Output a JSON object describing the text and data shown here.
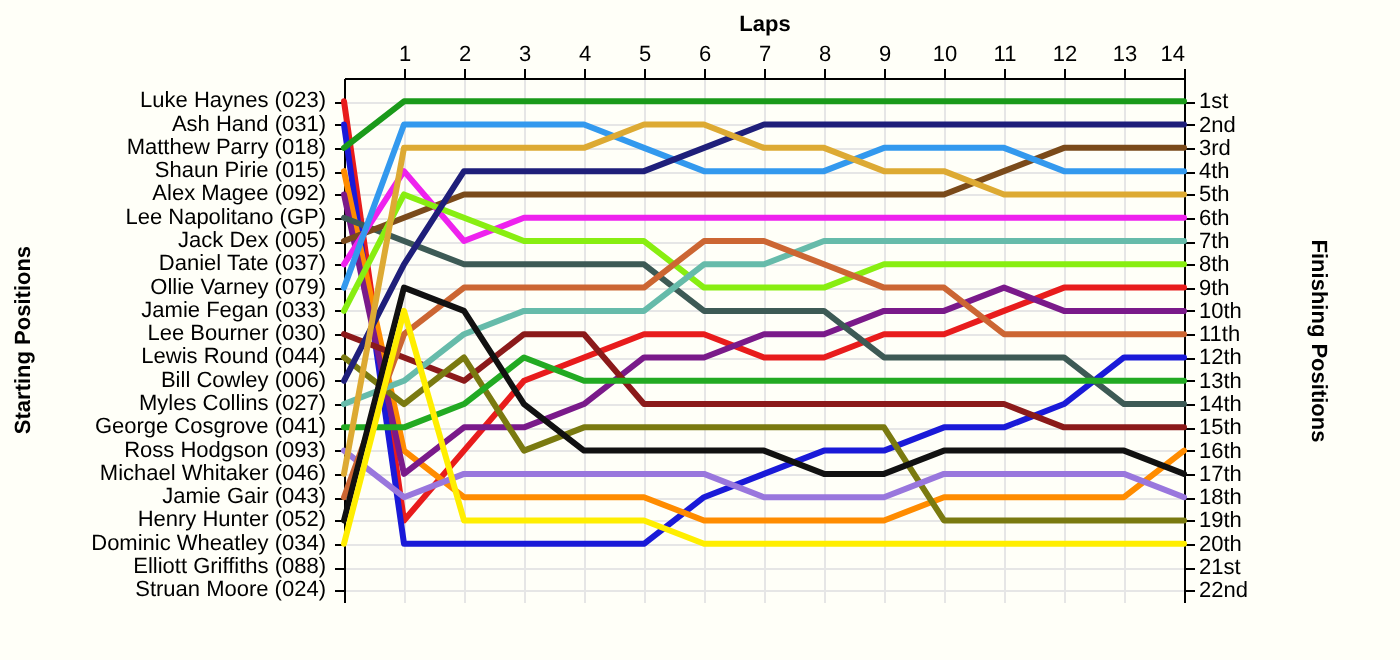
{
  "chart_data": {
    "type": "line",
    "xlabel": "Laps",
    "y2label": "Finishing Positions",
    "x": [
      0,
      1,
      2,
      3,
      4,
      5,
      6,
      7,
      8,
      9,
      10,
      11,
      12,
      13,
      14
    ],
    "xlim": [
      0,
      14
    ],
    "xticks": [
      1,
      2,
      3,
      4,
      5,
      6,
      7,
      8,
      9,
      10,
      11,
      12,
      13,
      14
    ],
    "y2lim": [
      22.5,
      0
    ],
    "y2ticks": [
      {
        "value": 1,
        "label": "1st"
      },
      {
        "value": 2,
        "label": "2nd"
      },
      {
        "value": 3,
        "label": "3rd"
      },
      {
        "value": 4,
        "label": "4th"
      },
      {
        "value": 5,
        "label": "5th"
      },
      {
        "value": 6,
        "label": "6th"
      },
      {
        "value": 7,
        "label": "7th"
      },
      {
        "value": 8,
        "label": "8th"
      },
      {
        "value": 9,
        "label": "9th"
      },
      {
        "value": 10,
        "label": "10th"
      },
      {
        "value": 11,
        "label": "11th"
      },
      {
        "value": 12,
        "label": "12th"
      },
      {
        "value": 13,
        "label": "13th"
      },
      {
        "value": 14,
        "label": "14th"
      },
      {
        "value": 15,
        "label": "15th"
      },
      {
        "value": 16,
        "label": "16th"
      },
      {
        "value": 17,
        "label": "17th"
      },
      {
        "value": 18,
        "label": "18th"
      },
      {
        "value": 19,
        "label": "19th"
      },
      {
        "value": 20,
        "label": "20th"
      },
      {
        "value": 21,
        "label": "21st"
      },
      {
        "value": 22,
        "label": "22nd"
      }
    ],
    "annotations": [
      "Luke Haynes (023)",
      "Ash Hand (031)",
      "Matthew Parry (018)",
      "Shaun Pirie (015)",
      "Alex Magee (092)",
      "Lee Napolitano (GP)",
      "Jack Dex (005)",
      "Daniel Tate (037)",
      "Ollie Varney (079)",
      "Jamie Fegan (033)",
      "Lee Bourner (030)",
      "Lewis Round (044)",
      "Bill Cowley (006)",
      "Myles Collins (027)",
      "George Cosgrove (041)",
      "Ross Hodgson (093)",
      "Michael Whitaker (046)",
      "Jamie Gair (043)",
      "Henry Hunter (052)",
      "Dominic Wheatley (034)",
      "Elliott Griffiths (088)",
      "Struan Moore (024)",
      "Starting Positions"
    ],
    "grid": true,
    "marker": "none",
    "line_style": "solid",
    "series": [
      {
        "axis": "y2",
        "color": "#e81c1c",
        "values": [
          1,
          19,
          16,
          13,
          12,
          11,
          11,
          12,
          12,
          11,
          11,
          10,
          9,
          9,
          9
        ]
      },
      {
        "axis": "y2",
        "color": "#1a1ad8",
        "values": [
          2,
          20,
          20,
          20,
          20,
          20,
          18,
          17,
          16,
          16,
          15,
          15,
          14,
          12,
          12
        ]
      },
      {
        "axis": "y2",
        "color": "#1a9a1a",
        "values": [
          3,
          1,
          1,
          1,
          1,
          1,
          1,
          1,
          1,
          1,
          1,
          1,
          1,
          1,
          1
        ]
      },
      {
        "axis": "y2",
        "color": "#ff8c00",
        "values": [
          4,
          16,
          18,
          18,
          18,
          18,
          19,
          19,
          19,
          19,
          18,
          18,
          18,
          18,
          16
        ]
      },
      {
        "axis": "y2",
        "color": "#7a1a8a",
        "values": [
          5,
          17,
          15,
          15,
          14,
          12,
          12,
          11,
          11,
          10,
          10,
          9,
          10,
          10,
          10
        ]
      },
      {
        "axis": "y2",
        "color": "#3d5a55",
        "values": [
          6,
          7,
          8,
          8,
          8,
          8,
          10,
          10,
          10,
          12,
          12,
          12,
          12,
          14,
          14
        ]
      },
      {
        "axis": "y2",
        "color": "#7a4a1a",
        "values": [
          7,
          6,
          5,
          5,
          5,
          5,
          5,
          5,
          5,
          5,
          5,
          4,
          3,
          3,
          3
        ]
      },
      {
        "axis": "y2",
        "color": "#ee22ee",
        "values": [
          8,
          4,
          7,
          6,
          6,
          6,
          6,
          6,
          6,
          6,
          6,
          6,
          6,
          6,
          6
        ]
      },
      {
        "axis": "y2",
        "color": "#3399ee",
        "values": [
          9,
          2,
          2,
          2,
          2,
          3,
          4,
          4,
          4,
          3,
          3,
          3,
          4,
          4,
          4
        ]
      },
      {
        "axis": "y2",
        "color": "#88ee11",
        "values": [
          10,
          5,
          6,
          7,
          7,
          7,
          9,
          9,
          9,
          8,
          8,
          8,
          8,
          8,
          8
        ]
      },
      {
        "axis": "y2",
        "color": "#8b1a1a",
        "values": [
          11,
          12,
          13,
          11,
          11,
          14,
          14,
          14,
          14,
          14,
          14,
          14,
          15,
          15,
          15
        ]
      },
      {
        "axis": "y2",
        "color": "#7a7a10",
        "values": [
          12,
          14,
          12,
          16,
          15,
          15,
          15,
          15,
          15,
          15,
          19,
          19,
          19,
          19,
          19
        ]
      },
      {
        "axis": "y2",
        "color": "#1f1f7a",
        "values": [
          13,
          8,
          4,
          4,
          4,
          4,
          3,
          2,
          2,
          2,
          2,
          2,
          2,
          2,
          2
        ]
      },
      {
        "axis": "y2",
        "color": "#66bbaa",
        "values": [
          14,
          13,
          11,
          10,
          10,
          10,
          8,
          8,
          7,
          7,
          7,
          7,
          7,
          7,
          7
        ]
      },
      {
        "axis": "y2",
        "color": "#22aa22",
        "values": [
          15,
          15,
          14,
          12,
          13,
          13,
          13,
          13,
          13,
          13,
          13,
          13,
          13,
          13,
          13
        ]
      },
      {
        "axis": "y2",
        "color": "#9977dd",
        "values": [
          16,
          18,
          17,
          17,
          17,
          17,
          17,
          18,
          18,
          18,
          17,
          17,
          17,
          17,
          18
        ]
      },
      {
        "axis": "y2",
        "color": "#ddaa33",
        "values": [
          17,
          3,
          3,
          3,
          3,
          2,
          2,
          3,
          3,
          4,
          4,
          5,
          5,
          5,
          5
        ]
      },
      {
        "axis": "y2",
        "color": "#cc6633",
        "values": [
          18,
          11,
          9,
          9,
          9,
          9,
          7,
          7,
          8,
          9,
          9,
          11,
          11,
          11,
          11
        ]
      },
      {
        "axis": "y2",
        "color": "#111111",
        "values": [
          19,
          9,
          10,
          14,
          16,
          16,
          16,
          16,
          17,
          17,
          16,
          16,
          16,
          16,
          17
        ]
      },
      {
        "axis": "y2",
        "color": "#ffee00",
        "values": [
          20,
          10,
          19,
          19,
          19,
          19,
          20,
          20,
          20,
          20,
          20,
          20,
          20,
          20,
          20
        ]
      }
    ]
  }
}
